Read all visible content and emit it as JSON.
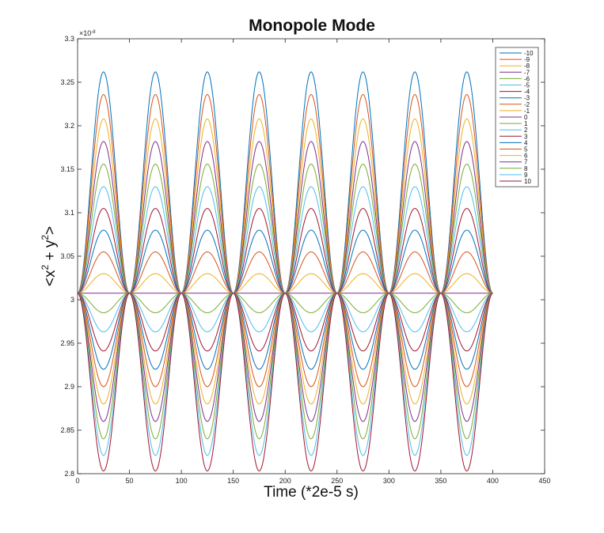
{
  "chart_data": {
    "type": "line",
    "title": "Monopole Mode",
    "xlabel": "Time (*2e-5 s)",
    "ylabel_base": "<x",
    "ylabel_sup1": "2",
    "ylabel_mid": " + y",
    "ylabel_sup2": "2",
    "ylabel_end": ">",
    "y_exponent_prefix": "×10",
    "y_exponent_power": "-8",
    "xlim": [
      0,
      450
    ],
    "ylim": [
      2.8,
      3.3
    ],
    "xticks": [
      0,
      50,
      100,
      150,
      200,
      250,
      300,
      350,
      400,
      450
    ],
    "yticks": [
      2.8,
      2.85,
      2.9,
      2.95,
      3,
      3.05,
      3.1,
      3.15,
      3.2,
      3.25,
      3.3
    ],
    "ytick_labels": [
      "2.8",
      "2.85",
      "2.9",
      "2.95",
      "3",
      "3.05",
      "3.1",
      "3.15",
      "3.2",
      "3.25",
      "3.3"
    ],
    "x_range": [
      0,
      400
    ],
    "baseline": 3.0075,
    "period": 50,
    "grid": false,
    "legend_position": "top-right",
    "series": [
      {
        "name": "-10",
        "color": "#0072BD",
        "peak": 3.262
      },
      {
        "name": "-9",
        "color": "#D95319",
        "peak": 3.236
      },
      {
        "name": "-8",
        "color": "#EDB120",
        "peak": 3.208
      },
      {
        "name": "-7",
        "color": "#7E2F8E",
        "peak": 3.182
      },
      {
        "name": "-6",
        "color": "#77AC30",
        "peak": 3.156
      },
      {
        "name": "-5",
        "color": "#4DBEEE",
        "peak": 3.13
      },
      {
        "name": "-4",
        "color": "#A2142F",
        "peak": 3.105
      },
      {
        "name": "-3",
        "color": "#0072BD",
        "peak": 3.08
      },
      {
        "name": "-2",
        "color": "#D95319",
        "peak": 3.055
      },
      {
        "name": "-1",
        "color": "#EDB120",
        "peak": 3.03
      },
      {
        "name": "0",
        "color": "#7E2F8E",
        "peak": 3.0075
      },
      {
        "name": "1",
        "color": "#77AC30",
        "peak": 2.985
      },
      {
        "name": "2",
        "color": "#4DBEEE",
        "peak": 2.963
      },
      {
        "name": "3",
        "color": "#A2142F",
        "peak": 2.941
      },
      {
        "name": "4",
        "color": "#0072BD",
        "peak": 2.92
      },
      {
        "name": "5",
        "color": "#D95319",
        "peak": 2.9
      },
      {
        "name": "6",
        "color": "#EDB120",
        "peak": 2.88
      },
      {
        "name": "7",
        "color": "#7E2F8E",
        "peak": 2.86
      },
      {
        "name": "8",
        "color": "#77AC30",
        "peak": 2.84
      },
      {
        "name": "9",
        "color": "#4DBEEE",
        "peak": 2.821
      },
      {
        "name": "10",
        "color": "#A2142F",
        "peak": 2.803
      }
    ]
  }
}
